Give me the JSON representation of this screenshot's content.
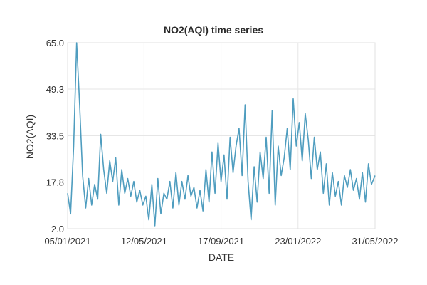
{
  "chart_data": {
    "type": "line",
    "title": "NO2(AQI) time series",
    "xlabel": "DATE",
    "ylabel": "NO2(AQI)",
    "x_range": [
      "05/01/2021",
      "31/05/2022"
    ],
    "ylim": [
      2.0,
      65.0
    ],
    "y_ticks": [
      "2.0",
      "17.8",
      "33.5",
      "49.3",
      "65.0"
    ],
    "x_ticks": [
      "05/01/2021",
      "12/05/2021",
      "17/09/2021",
      "23/01/2022",
      "31/05/2022"
    ],
    "grid": true,
    "line_color": "#4f9dbf",
    "series": [
      {
        "x": [
          "05/01/2021",
          "10/01/2021",
          "15/01/2021",
          "20/01/2021",
          "25/01/2021",
          "30/01/2021",
          "04/02/2021",
          "09/02/2021",
          "14/02/2021",
          "19/02/2021",
          "24/02/2021",
          "01/03/2021",
          "06/03/2021",
          "11/03/2021",
          "16/03/2021",
          "21/03/2021",
          "26/03/2021",
          "31/03/2021",
          "05/04/2021",
          "10/04/2021",
          "15/04/2021",
          "20/04/2021",
          "25/04/2021",
          "30/04/2021",
          "05/05/2021",
          "10/05/2021",
          "15/05/2021",
          "20/05/2021",
          "25/05/2021",
          "30/05/2021",
          "04/06/2021",
          "09/06/2021",
          "14/06/2021",
          "19/06/2021",
          "24/06/2021",
          "29/06/2021",
          "04/07/2021",
          "09/07/2021",
          "14/07/2021",
          "19/07/2021",
          "24/07/2021",
          "29/07/2021",
          "03/08/2021",
          "08/08/2021",
          "13/08/2021",
          "18/08/2021",
          "23/08/2021",
          "28/08/2021",
          "02/09/2021",
          "07/09/2021",
          "12/09/2021",
          "17/09/2021",
          "22/09/2021",
          "27/09/2021",
          "02/10/2021",
          "07/10/2021",
          "12/10/2021",
          "17/10/2021",
          "22/10/2021",
          "27/10/2021",
          "01/11/2021",
          "06/11/2021",
          "11/11/2021",
          "16/11/2021",
          "21/11/2021",
          "26/11/2021",
          "01/12/2021",
          "06/12/2021",
          "11/12/2021",
          "16/12/2021",
          "21/12/2021",
          "26/12/2021",
          "31/12/2021",
          "05/01/2022",
          "10/01/2022",
          "15/01/2022",
          "20/01/2022",
          "25/01/2022",
          "30/01/2022",
          "04/02/2022",
          "09/02/2022",
          "14/02/2022",
          "19/02/2022",
          "24/02/2022",
          "01/03/2022",
          "06/03/2022",
          "11/03/2022",
          "16/03/2022",
          "21/03/2022",
          "26/03/2022",
          "31/03/2022",
          "05/04/2022",
          "10/04/2022",
          "15/04/2022",
          "20/04/2022",
          "25/04/2022",
          "30/04/2022",
          "05/05/2022",
          "10/05/2022",
          "15/05/2022",
          "20/05/2022",
          "25/05/2022",
          "31/05/2022"
        ],
        "values": [
          14,
          7,
          30,
          65,
          44,
          20,
          9,
          19,
          10,
          17,
          12,
          34,
          22,
          14,
          25,
          18,
          26,
          10,
          22,
          14,
          19,
          13,
          18,
          11,
          15,
          10,
          13,
          5,
          17,
          3,
          19,
          7,
          14,
          12,
          18,
          9,
          21,
          10,
          18,
          12,
          20,
          13,
          16,
          9,
          15,
          8,
          22,
          11,
          28,
          14,
          31,
          18,
          27,
          12,
          33,
          21,
          30,
          36,
          20,
          44,
          18,
          5,
          23,
          11,
          28,
          19,
          33,
          14,
          42,
          10,
          30,
          20,
          26,
          36,
          22,
          46,
          30,
          38,
          25,
          41,
          32,
          19,
          33,
          22,
          28,
          14,
          24,
          10,
          21,
          13,
          18,
          10,
          20,
          16,
          22,
          15,
          19,
          12,
          21,
          11,
          24,
          17,
          20
        ]
      }
    ]
  }
}
